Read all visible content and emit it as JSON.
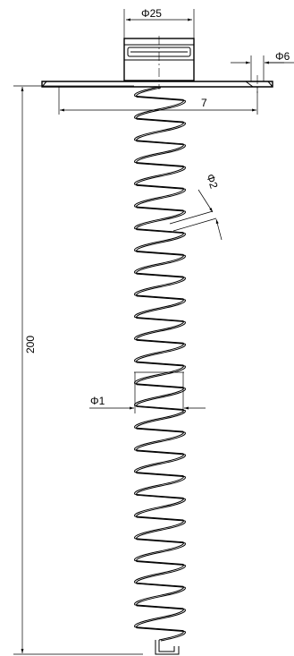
{
  "dimensions": {
    "cap_diameter": "Φ25",
    "hole_diameter": "Φ6",
    "flange_offset": "7",
    "coil_pitch_diameter": "Φ2",
    "wire_diameter": "Φ1",
    "overall_length": "200"
  },
  "colors": {
    "line": "#000000",
    "background": "#ffffff"
  }
}
